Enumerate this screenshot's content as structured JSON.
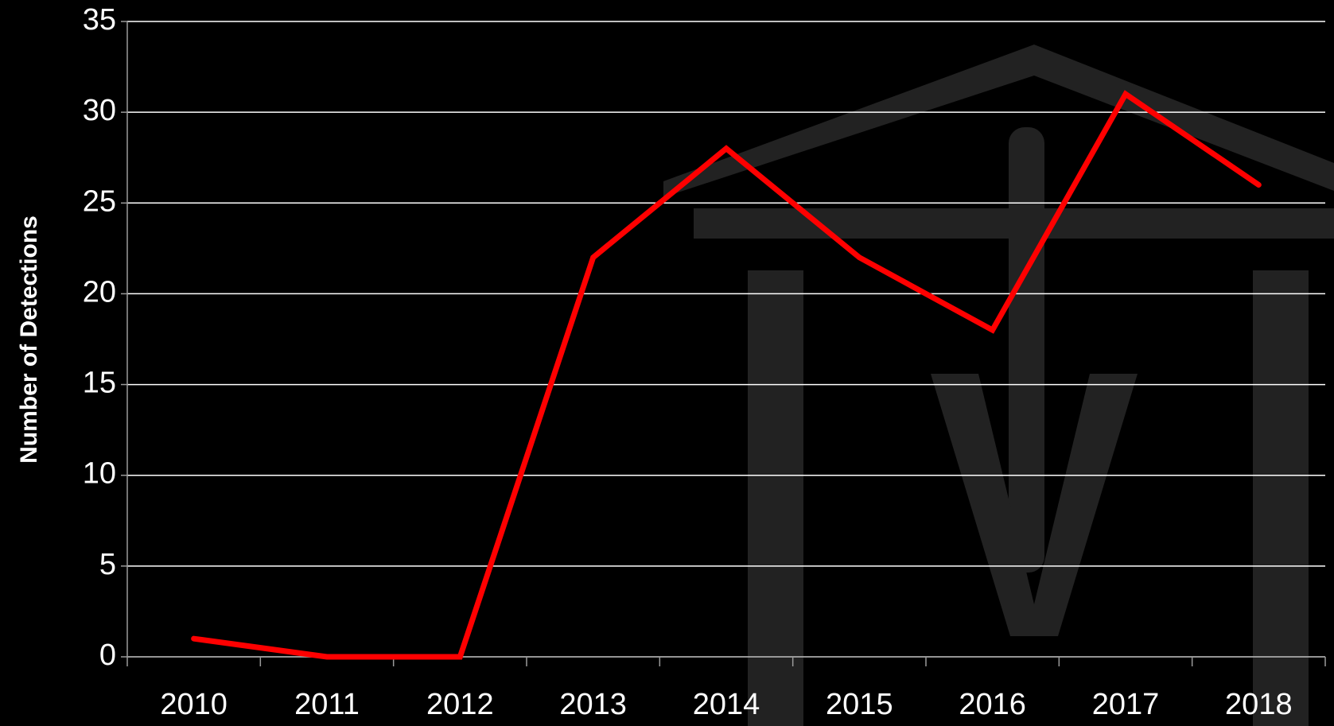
{
  "chart_data": {
    "type": "line",
    "y_label": "Number of Detections",
    "categories": [
      "2010",
      "2011",
      "2012",
      "2013",
      "2014",
      "2015",
      "2016",
      "2017",
      "2018"
    ],
    "values": [
      1,
      0,
      0,
      22,
      28,
      22,
      18,
      31,
      26
    ],
    "color": "#ff0000",
    "ylim": [
      0,
      35
    ],
    "yticks": [
      0,
      5,
      10,
      15,
      20,
      25,
      30,
      35
    ],
    "grid": true
  }
}
